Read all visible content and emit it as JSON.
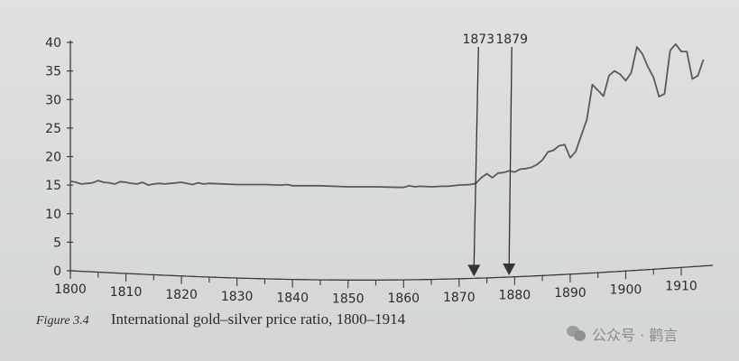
{
  "chart_data": {
    "type": "line",
    "title": "International gold-silver price ratio, 1800-1914",
    "figure_label": "Figure 3.4",
    "xlabel": "",
    "ylabel": "",
    "xlim": [
      1800,
      1914
    ],
    "ylim": [
      0,
      40
    ],
    "x_ticks": [
      1800,
      1810,
      1820,
      1830,
      1840,
      1850,
      1860,
      1870,
      1880,
      1890,
      1900,
      1910
    ],
    "y_ticks": [
      0,
      5,
      10,
      15,
      20,
      25,
      30,
      35,
      40
    ],
    "grid": false,
    "legend": null,
    "annotations": [
      {
        "label": "1873",
        "x": 1873,
        "type": "arrow-down"
      },
      {
        "label": "1879",
        "x": 1879,
        "type": "arrow-down"
      }
    ],
    "series": [
      {
        "name": "Gold-silver price ratio",
        "x": [
          1800,
          1801,
          1802,
          1803,
          1804,
          1805,
          1806,
          1807,
          1808,
          1809,
          1810,
          1811,
          1812,
          1813,
          1814,
          1815,
          1816,
          1817,
          1818,
          1819,
          1820,
          1821,
          1822,
          1823,
          1824,
          1825,
          1830,
          1835,
          1838,
          1839,
          1840,
          1845,
          1850,
          1855,
          1860,
          1861,
          1862,
          1863,
          1865,
          1867,
          1868,
          1870,
          1872,
          1873,
          1874,
          1875,
          1876,
          1877,
          1878,
          1879,
          1880,
          1881,
          1882,
          1883,
          1884,
          1885,
          1886,
          1887,
          1888,
          1889,
          1890,
          1891,
          1892,
          1893,
          1894,
          1895,
          1896,
          1897,
          1898,
          1899,
          1900,
          1901,
          1902,
          1903,
          1904,
          1905,
          1906,
          1907,
          1908,
          1909,
          1910,
          1911,
          1912,
          1913,
          1914
        ],
        "values": [
          15.7,
          15.5,
          15.2,
          15.3,
          15.4,
          15.8,
          15.5,
          15.4,
          15.2,
          15.6,
          15.5,
          15.3,
          15.2,
          15.5,
          15.0,
          15.2,
          15.3,
          15.2,
          15.3,
          15.4,
          15.5,
          15.3,
          15.1,
          15.4,
          15.2,
          15.3,
          15.1,
          15.1,
          15.0,
          15.1,
          14.9,
          14.9,
          14.7,
          14.7,
          14.6,
          14.9,
          14.7,
          14.8,
          14.7,
          14.8,
          14.8,
          15.0,
          15.1,
          15.3,
          16.3,
          17.0,
          16.3,
          17.1,
          17.2,
          17.5,
          17.3,
          17.8,
          17.9,
          18.1,
          18.6,
          19.4,
          20.8,
          21.1,
          21.9,
          22.1,
          19.8,
          20.9,
          23.7,
          26.5,
          32.6,
          31.6,
          30.6,
          34.2,
          35.0,
          34.4,
          33.3,
          34.7,
          39.2,
          38.0,
          35.7,
          33.9,
          30.5,
          31.0,
          38.6,
          39.7,
          38.4,
          38.4,
          33.6,
          34.2,
          37.0
        ]
      }
    ]
  },
  "caption": {
    "figure_label": "Figure 3.4",
    "text": "International gold–silver price ratio, 1800–1914"
  },
  "watermark": {
    "text": "公众号 · 鹳言"
  }
}
